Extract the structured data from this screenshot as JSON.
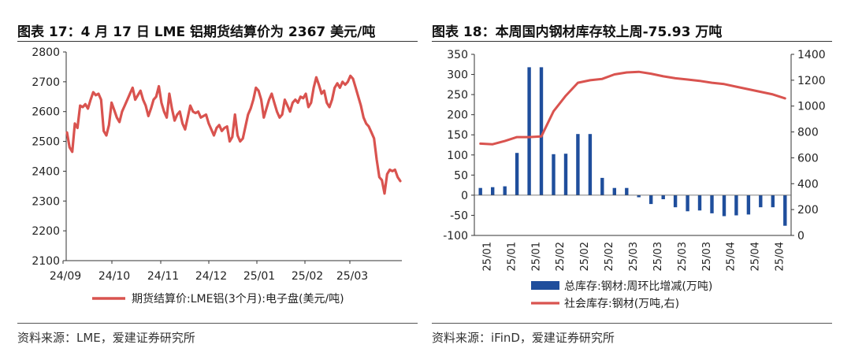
{
  "left": {
    "title": "图表 17：4 月 17 日 LME 铝期货结算价为 2367 美元/吨",
    "source": "资料来源：LME，爱建证券研究所"
  },
  "right": {
    "title": "图表 18：本周国内钢材库存较上周-75.93 万吨",
    "source": "资料来源：iFinD，爱建证券研究所"
  },
  "chart_data": [
    {
      "type": "line",
      "title": "图表 17：4 月 17 日 LME 铝期货结算价为 2367 美元/吨",
      "ylim": [
        2100,
        2800
      ],
      "yticks": [
        2100,
        2200,
        2300,
        2400,
        2500,
        2600,
        2700,
        2800
      ],
      "xticks": [
        "24/09",
        "24/10",
        "24/11",
        "24/12",
        "25/01",
        "25/02",
        "25/03"
      ],
      "grid": false,
      "legend_position": "bottom",
      "series": [
        {
          "name": "期货结算价:LME铝(3个月):电子盘(美元/吨)",
          "color": "#d9534f",
          "values": [
            2530,
            2480,
            2465,
            2560,
            2545,
            2620,
            2615,
            2625,
            2610,
            2640,
            2665,
            2655,
            2660,
            2640,
            2535,
            2520,
            2555,
            2630,
            2605,
            2580,
            2565,
            2600,
            2620,
            2640,
            2660,
            2680,
            2640,
            2655,
            2670,
            2640,
            2620,
            2585,
            2610,
            2640,
            2650,
            2685,
            2630,
            2600,
            2580,
            2660,
            2610,
            2570,
            2590,
            2600,
            2560,
            2540,
            2580,
            2620,
            2600,
            2595,
            2600,
            2580,
            2585,
            2590,
            2560,
            2540,
            2520,
            2545,
            2555,
            2535,
            2545,
            2550,
            2500,
            2515,
            2590,
            2520,
            2500,
            2510,
            2550,
            2590,
            2610,
            2640,
            2680,
            2670,
            2640,
            2580,
            2610,
            2640,
            2660,
            2630,
            2600,
            2580,
            2590,
            2640,
            2620,
            2600,
            2630,
            2640,
            2630,
            2650,
            2645,
            2660,
            2615,
            2630,
            2680,
            2715,
            2690,
            2660,
            2670,
            2630,
            2615,
            2640,
            2680,
            2695,
            2680,
            2700,
            2690,
            2700,
            2720,
            2710,
            2680,
            2650,
            2620,
            2580,
            2560,
            2550,
            2530,
            2510,
            2440,
            2380,
            2370,
            2325,
            2390,
            2405,
            2400,
            2405,
            2380,
            2367
          ]
        }
      ]
    },
    {
      "type": "bar",
      "title": "图表 18：本周国内钢材库存较上周-75.93 万吨",
      "ylim": [
        -100,
        350
      ],
      "yticks": [
        -100,
        -50,
        0,
        50,
        100,
        150,
        200,
        250,
        300,
        350
      ],
      "y2lim": [
        0,
        1400
      ],
      "y2ticks": [
        0,
        200,
        400,
        600,
        800,
        1000,
        1200,
        1400
      ],
      "xticks": [
        "25/01",
        "25/01",
        "25/01",
        "25/02",
        "25/02",
        "25/02",
        "25/03",
        "25/03",
        "25/03",
        "25/03",
        "25/04",
        "25/04",
        "25/04"
      ],
      "grid": false,
      "legend_position": "bottom",
      "series": [
        {
          "name": "总库存:钢材:周环比增减(万吨)",
          "type": "bar",
          "axis": "left",
          "color": "#1f4e9c",
          "values": [
            18,
            20,
            22,
            105,
            318,
            318,
            102,
            103,
            152,
            152,
            43,
            18,
            18,
            -5,
            -22,
            -10,
            -30,
            -40,
            -38,
            -45,
            -52,
            -50,
            -48,
            -30,
            -30,
            -75.93
          ]
        },
        {
          "name": "社会库存:钢材(万吨,右)",
          "type": "line",
          "axis": "right",
          "color": "#d9534f",
          "values": [
            710,
            705,
            730,
            760,
            760,
            765,
            960,
            1080,
            1180,
            1200,
            1210,
            1245,
            1260,
            1265,
            1250,
            1230,
            1215,
            1205,
            1195,
            1180,
            1170,
            1150,
            1130,
            1110,
            1090,
            1060
          ]
        }
      ]
    }
  ]
}
